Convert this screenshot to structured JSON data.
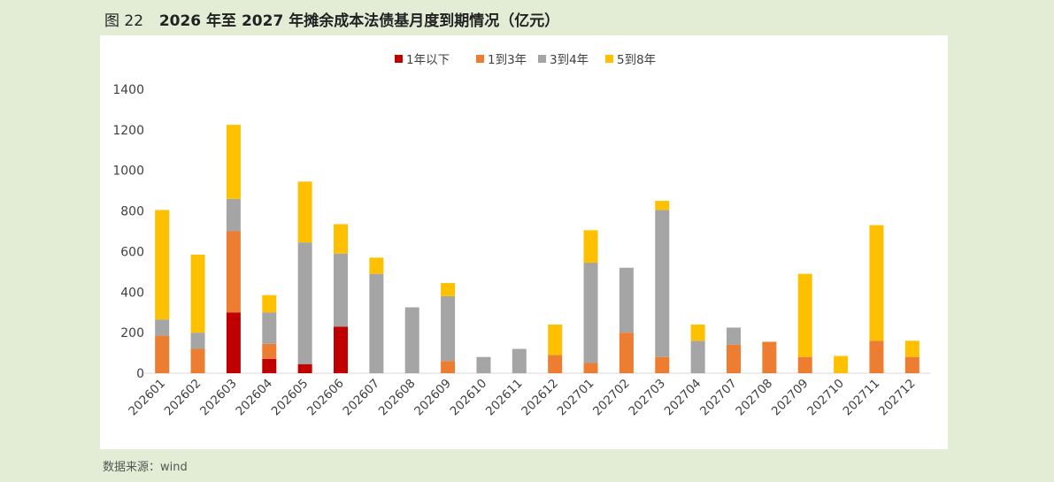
{
  "figure": {
    "label": "图 22",
    "title": "2026 年至 2027 年摊余成本法债基月度到期情况（亿元）"
  },
  "source": "数据来源：wind",
  "colors": {
    "page_bg": "#e3edd6",
    "panel_bg": "#ffffff",
    "series": [
      "#c00000",
      "#ed7d31",
      "#a5a5a5",
      "#ffc000"
    ]
  },
  "chart_data": {
    "type": "bar",
    "stacked": true,
    "categories": [
      "202601",
      "202602",
      "202603",
      "202604",
      "202605",
      "202606",
      "202607",
      "202608",
      "202609",
      "202610",
      "202611",
      "202612",
      "202701",
      "202702",
      "202703",
      "202704",
      "202707",
      "202708",
      "202709",
      "202710",
      "202711",
      "202712"
    ],
    "series": [
      {
        "name": "1年以下",
        "values": [
          0,
          0,
          300,
          70,
          45,
          230,
          0,
          0,
          0,
          0,
          0,
          0,
          0,
          0,
          0,
          0,
          0,
          0,
          0,
          0,
          0,
          0
        ]
      },
      {
        "name": "1到3年",
        "values": [
          185,
          120,
          400,
          75,
          0,
          0,
          0,
          0,
          60,
          0,
          0,
          90,
          50,
          200,
          80,
          0,
          140,
          155,
          80,
          0,
          160,
          80
        ]
      },
      {
        "name": "3到4年",
        "values": [
          80,
          80,
          160,
          155,
          600,
          360,
          490,
          325,
          320,
          80,
          120,
          0,
          495,
          320,
          725,
          160,
          85,
          0,
          0,
          0,
          0,
          0
        ]
      },
      {
        "name": "5到8年",
        "values": [
          540,
          385,
          365,
          85,
          300,
          145,
          80,
          0,
          65,
          0,
          0,
          150,
          160,
          0,
          45,
          80,
          0,
          0,
          410,
          85,
          570,
          80
        ]
      }
    ],
    "ylim": [
      0,
      1400
    ],
    "yticks": [
      0,
      200,
      400,
      600,
      800,
      1000,
      1200,
      1400
    ],
    "legend_position": "top-center",
    "grid": false
  }
}
